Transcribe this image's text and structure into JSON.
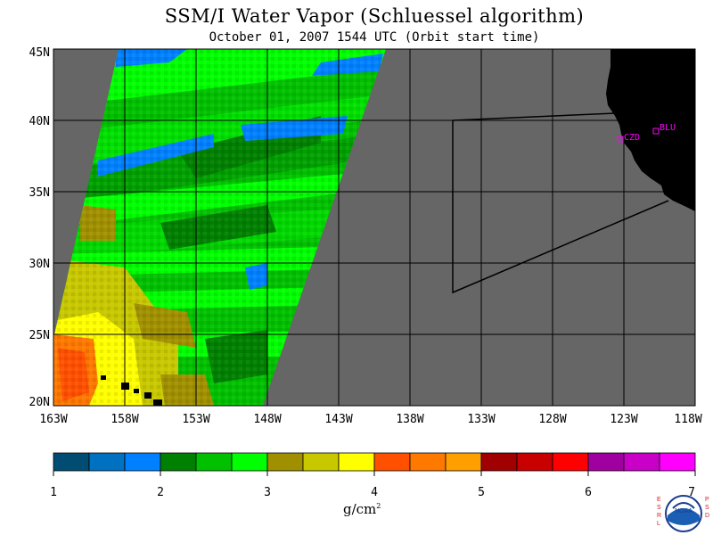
{
  "title": "SSM/I Water Vapor (Schluessel algorithm)",
  "subtitle": "October 01, 2007  1544 UTC  (Orbit start time)",
  "map": {
    "lat_labels": [
      "45N",
      "40N",
      "35N",
      "30N",
      "25N",
      "20N"
    ],
    "lon_labels": [
      "163W",
      "158W",
      "153W",
      "148W",
      "143W",
      "138W",
      "133W",
      "128W",
      "123W",
      "118W"
    ],
    "stations": [
      {
        "id": "CZD",
        "label": "CZD"
      },
      {
        "id": "BLU",
        "label": "BLU"
      }
    ]
  },
  "colorbar": {
    "ticks": [
      "1",
      "2",
      "3",
      "4",
      "5",
      "6",
      "7"
    ],
    "colors": [
      "#004c73",
      "#0070c0",
      "#0080ff",
      "#008000",
      "#00c000",
      "#00ff00",
      "#a09000",
      "#c8c800",
      "#ffff00",
      "#ff5000",
      "#ff7800",
      "#ffa000",
      "#a00000",
      "#c80000",
      "#ff0000",
      "#a000a0",
      "#c800c8",
      "#ff00ff"
    ],
    "units": "g/cm",
    "units_sup": "2"
  },
  "colors": {
    "land": "#000000",
    "ocean_nodata": "#666666",
    "station": "#ff00ff"
  },
  "logo": {
    "left_text": "ESRL",
    "right_text": "PSD",
    "badge": "NOAA"
  }
}
